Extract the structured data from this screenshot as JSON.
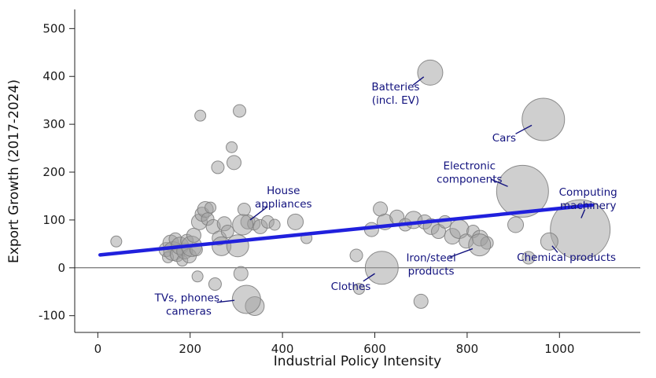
{
  "chart_data": {
    "type": "scatter",
    "title": "",
    "xlabel": "Industrial Policy Intensity",
    "ylabel": "Export Growth (2017-2024)",
    "xlim": [
      -50,
      1175
    ],
    "ylim": [
      -135,
      540
    ],
    "xticks": [
      0,
      200,
      400,
      600,
      800,
      1000
    ],
    "yticks": [
      -100,
      0,
      100,
      200,
      300,
      400,
      500
    ],
    "grid": false,
    "legend": false,
    "bubble_fill": "#a0a0a0",
    "bubble_opacity": 0.5,
    "bubble_stroke": "#808080",
    "trend_color": "#2020dd",
    "annotation_color": "#12127e",
    "zero_line_color": "#555555",
    "axis_color": "#222222",
    "trendline": {
      "x1": 5,
      "y1": 27,
      "x2": 1070,
      "y2": 131
    },
    "points": [
      [
        40,
        55,
        7
      ],
      [
        148,
        38,
        9
      ],
      [
        152,
        22,
        7
      ],
      [
        158,
        52,
        10
      ],
      [
        163,
        35,
        12
      ],
      [
        168,
        60,
        8
      ],
      [
        172,
        28,
        9
      ],
      [
        178,
        46,
        11
      ],
      [
        183,
        15,
        7
      ],
      [
        188,
        35,
        10
      ],
      [
        193,
        57,
        8
      ],
      [
        198,
        25,
        9
      ],
      [
        203,
        45,
        13
      ],
      [
        208,
        68,
        9
      ],
      [
        213,
        38,
        8
      ],
      [
        216,
        -18,
        7
      ],
      [
        220,
        96,
        10
      ],
      [
        226,
        112,
        9
      ],
      [
        222,
        318,
        7
      ],
      [
        233,
        122,
        10
      ],
      [
        238,
        102,
        8
      ],
      [
        244,
        126,
        7
      ],
      [
        250,
        86,
        9
      ],
      [
        254,
        -34,
        8
      ],
      [
        260,
        210,
        8
      ],
      [
        263,
        62,
        9
      ],
      [
        268,
        45,
        12
      ],
      [
        274,
        92,
        9
      ],
      [
        281,
        76,
        8
      ],
      [
        290,
        252,
        7
      ],
      [
        295,
        220,
        9
      ],
      [
        307,
        328,
        8
      ],
      [
        303,
        46,
        14
      ],
      [
        310,
        -12,
        9
      ],
      [
        317,
        122,
        8
      ],
      [
        325,
        96,
        9
      ],
      [
        340,
        -80,
        12
      ],
      [
        338,
        92,
        8
      ],
      [
        352,
        86,
        9
      ],
      [
        368,
        96,
        8
      ],
      [
        383,
        90,
        7
      ],
      [
        428,
        96,
        10
      ],
      [
        452,
        62,
        7
      ],
      [
        560,
        26,
        8
      ],
      [
        566,
        -44,
        7
      ],
      [
        593,
        80,
        9
      ],
      [
        612,
        123,
        9
      ],
      [
        622,
        96,
        10
      ],
      [
        648,
        106,
        9
      ],
      [
        666,
        90,
        8
      ],
      [
        684,
        100,
        11
      ],
      [
        700,
        -70,
        9
      ],
      [
        708,
        96,
        9
      ],
      [
        722,
        86,
        10
      ],
      [
        738,
        76,
        9
      ],
      [
        752,
        96,
        8
      ],
      [
        768,
        66,
        10
      ],
      [
        783,
        81,
        12
      ],
      [
        798,
        56,
        9
      ],
      [
        813,
        76,
        8
      ],
      [
        828,
        62,
        10
      ],
      [
        843,
        52,
        8
      ],
      [
        905,
        90,
        10
      ],
      [
        933,
        21,
        8
      ]
    ],
    "annotations": [
      {
        "id": "batteries",
        "lines": [
          "Batteries",
          "(incl. EV)"
        ],
        "lx": 645,
        "ly": 365,
        "x": 720,
        "y": 408,
        "r": 16,
        "pointer": {
          "x1": 683,
          "y1": 382,
          "x2": 706,
          "y2": 399
        }
      },
      {
        "id": "cars",
        "lines": [
          "Cars"
        ],
        "lx": 880,
        "ly": 272,
        "x": 965,
        "y": 310,
        "r": 27,
        "pointer": {
          "x1": 905,
          "y1": 280,
          "x2": 940,
          "y2": 298
        }
      },
      {
        "id": "electronic-components",
        "lines": [
          "Electronic",
          "components"
        ],
        "lx": 805,
        "ly": 200,
        "x": 920,
        "y": 160,
        "r": 33,
        "pointer": {
          "x1": 852,
          "y1": 185,
          "x2": 888,
          "y2": 170
        }
      },
      {
        "id": "computing-machinery",
        "lines": [
          "Computing",
          "machinery"
        ],
        "lx": 1062,
        "ly": 145,
        "x": 1045,
        "y": 80,
        "r": 38,
        "pointer": {
          "x1": 1055,
          "y1": 122,
          "x2": 1047,
          "y2": 104
        }
      },
      {
        "id": "chemical-products",
        "lines": [
          "Chemical products"
        ],
        "lx": 1015,
        "ly": 23,
        "x": 978,
        "y": 55,
        "r": 11,
        "pointer": {
          "x1": 996,
          "y1": 32,
          "x2": 984,
          "y2": 46
        }
      },
      {
        "id": "iron-steel-products",
        "lines": [
          "Iron/steel",
          "products"
        ],
        "lx": 722,
        "ly": 8,
        "x": 827,
        "y": 48,
        "r": 14,
        "pointer": {
          "x1": 762,
          "y1": 22,
          "x2": 812,
          "y2": 40
        }
      },
      {
        "id": "clothes",
        "lines": [
          "Clothes"
        ],
        "lx": 548,
        "ly": -38,
        "x": 615,
        "y": 0,
        "r": 21,
        "pointer": {
          "x1": 575,
          "y1": -28,
          "x2": 600,
          "y2": -12
        }
      },
      {
        "id": "house-appliances",
        "lines": [
          "House",
          "appliances"
        ],
        "lx": 402,
        "ly": 148,
        "x": 314,
        "y": 90,
        "r": 13,
        "pointer": {
          "x1": 368,
          "y1": 128,
          "x2": 330,
          "y2": 100
        }
      },
      {
        "id": "tvs-phones-cameras",
        "lines": [
          "TVs, phones,",
          "cameras"
        ],
        "lx": 197,
        "ly": -76,
        "x": 322,
        "y": -66,
        "r": 18,
        "pointer": {
          "x1": 258,
          "y1": -72,
          "x2": 296,
          "y2": -68
        }
      }
    ]
  }
}
